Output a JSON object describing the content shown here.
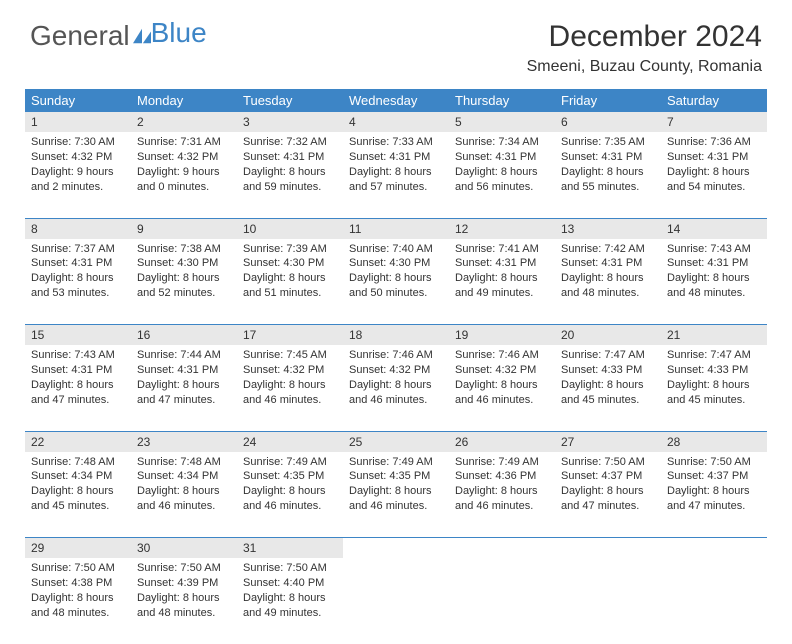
{
  "brand": {
    "part1": "General",
    "part2": "Blue"
  },
  "title": "December 2024",
  "location": "Smeeni, Buzau County, Romania",
  "colors": {
    "header_bg": "#3d85c6",
    "header_text": "#ffffff",
    "daynum_bg": "#e8e8e8",
    "text": "#333333",
    "rule": "#3d85c6"
  },
  "day_headers": [
    "Sunday",
    "Monday",
    "Tuesday",
    "Wednesday",
    "Thursday",
    "Friday",
    "Saturday"
  ],
  "weeks": [
    [
      {
        "n": "1",
        "sr": "Sunrise: 7:30 AM",
        "ss": "Sunset: 4:32 PM",
        "d1": "Daylight: 9 hours",
        "d2": "and 2 minutes."
      },
      {
        "n": "2",
        "sr": "Sunrise: 7:31 AM",
        "ss": "Sunset: 4:32 PM",
        "d1": "Daylight: 9 hours",
        "d2": "and 0 minutes."
      },
      {
        "n": "3",
        "sr": "Sunrise: 7:32 AM",
        "ss": "Sunset: 4:31 PM",
        "d1": "Daylight: 8 hours",
        "d2": "and 59 minutes."
      },
      {
        "n": "4",
        "sr": "Sunrise: 7:33 AM",
        "ss": "Sunset: 4:31 PM",
        "d1": "Daylight: 8 hours",
        "d2": "and 57 minutes."
      },
      {
        "n": "5",
        "sr": "Sunrise: 7:34 AM",
        "ss": "Sunset: 4:31 PM",
        "d1": "Daylight: 8 hours",
        "d2": "and 56 minutes."
      },
      {
        "n": "6",
        "sr": "Sunrise: 7:35 AM",
        "ss": "Sunset: 4:31 PM",
        "d1": "Daylight: 8 hours",
        "d2": "and 55 minutes."
      },
      {
        "n": "7",
        "sr": "Sunrise: 7:36 AM",
        "ss": "Sunset: 4:31 PM",
        "d1": "Daylight: 8 hours",
        "d2": "and 54 minutes."
      }
    ],
    [
      {
        "n": "8",
        "sr": "Sunrise: 7:37 AM",
        "ss": "Sunset: 4:31 PM",
        "d1": "Daylight: 8 hours",
        "d2": "and 53 minutes."
      },
      {
        "n": "9",
        "sr": "Sunrise: 7:38 AM",
        "ss": "Sunset: 4:30 PM",
        "d1": "Daylight: 8 hours",
        "d2": "and 52 minutes."
      },
      {
        "n": "10",
        "sr": "Sunrise: 7:39 AM",
        "ss": "Sunset: 4:30 PM",
        "d1": "Daylight: 8 hours",
        "d2": "and 51 minutes."
      },
      {
        "n": "11",
        "sr": "Sunrise: 7:40 AM",
        "ss": "Sunset: 4:30 PM",
        "d1": "Daylight: 8 hours",
        "d2": "and 50 minutes."
      },
      {
        "n": "12",
        "sr": "Sunrise: 7:41 AM",
        "ss": "Sunset: 4:31 PM",
        "d1": "Daylight: 8 hours",
        "d2": "and 49 minutes."
      },
      {
        "n": "13",
        "sr": "Sunrise: 7:42 AM",
        "ss": "Sunset: 4:31 PM",
        "d1": "Daylight: 8 hours",
        "d2": "and 48 minutes."
      },
      {
        "n": "14",
        "sr": "Sunrise: 7:43 AM",
        "ss": "Sunset: 4:31 PM",
        "d1": "Daylight: 8 hours",
        "d2": "and 48 minutes."
      }
    ],
    [
      {
        "n": "15",
        "sr": "Sunrise: 7:43 AM",
        "ss": "Sunset: 4:31 PM",
        "d1": "Daylight: 8 hours",
        "d2": "and 47 minutes."
      },
      {
        "n": "16",
        "sr": "Sunrise: 7:44 AM",
        "ss": "Sunset: 4:31 PM",
        "d1": "Daylight: 8 hours",
        "d2": "and 47 minutes."
      },
      {
        "n": "17",
        "sr": "Sunrise: 7:45 AM",
        "ss": "Sunset: 4:32 PM",
        "d1": "Daylight: 8 hours",
        "d2": "and 46 minutes."
      },
      {
        "n": "18",
        "sr": "Sunrise: 7:46 AM",
        "ss": "Sunset: 4:32 PM",
        "d1": "Daylight: 8 hours",
        "d2": "and 46 minutes."
      },
      {
        "n": "19",
        "sr": "Sunrise: 7:46 AM",
        "ss": "Sunset: 4:32 PM",
        "d1": "Daylight: 8 hours",
        "d2": "and 46 minutes."
      },
      {
        "n": "20",
        "sr": "Sunrise: 7:47 AM",
        "ss": "Sunset: 4:33 PM",
        "d1": "Daylight: 8 hours",
        "d2": "and 45 minutes."
      },
      {
        "n": "21",
        "sr": "Sunrise: 7:47 AM",
        "ss": "Sunset: 4:33 PM",
        "d1": "Daylight: 8 hours",
        "d2": "and 45 minutes."
      }
    ],
    [
      {
        "n": "22",
        "sr": "Sunrise: 7:48 AM",
        "ss": "Sunset: 4:34 PM",
        "d1": "Daylight: 8 hours",
        "d2": "and 45 minutes."
      },
      {
        "n": "23",
        "sr": "Sunrise: 7:48 AM",
        "ss": "Sunset: 4:34 PM",
        "d1": "Daylight: 8 hours",
        "d2": "and 46 minutes."
      },
      {
        "n": "24",
        "sr": "Sunrise: 7:49 AM",
        "ss": "Sunset: 4:35 PM",
        "d1": "Daylight: 8 hours",
        "d2": "and 46 minutes."
      },
      {
        "n": "25",
        "sr": "Sunrise: 7:49 AM",
        "ss": "Sunset: 4:35 PM",
        "d1": "Daylight: 8 hours",
        "d2": "and 46 minutes."
      },
      {
        "n": "26",
        "sr": "Sunrise: 7:49 AM",
        "ss": "Sunset: 4:36 PM",
        "d1": "Daylight: 8 hours",
        "d2": "and 46 minutes."
      },
      {
        "n": "27",
        "sr": "Sunrise: 7:50 AM",
        "ss": "Sunset: 4:37 PM",
        "d1": "Daylight: 8 hours",
        "d2": "and 47 minutes."
      },
      {
        "n": "28",
        "sr": "Sunrise: 7:50 AM",
        "ss": "Sunset: 4:37 PM",
        "d1": "Daylight: 8 hours",
        "d2": "and 47 minutes."
      }
    ],
    [
      {
        "n": "29",
        "sr": "Sunrise: 7:50 AM",
        "ss": "Sunset: 4:38 PM",
        "d1": "Daylight: 8 hours",
        "d2": "and 48 minutes."
      },
      {
        "n": "30",
        "sr": "Sunrise: 7:50 AM",
        "ss": "Sunset: 4:39 PM",
        "d1": "Daylight: 8 hours",
        "d2": "and 48 minutes."
      },
      {
        "n": "31",
        "sr": "Sunrise: 7:50 AM",
        "ss": "Sunset: 4:40 PM",
        "d1": "Daylight: 8 hours",
        "d2": "and 49 minutes."
      },
      null,
      null,
      null,
      null
    ]
  ]
}
